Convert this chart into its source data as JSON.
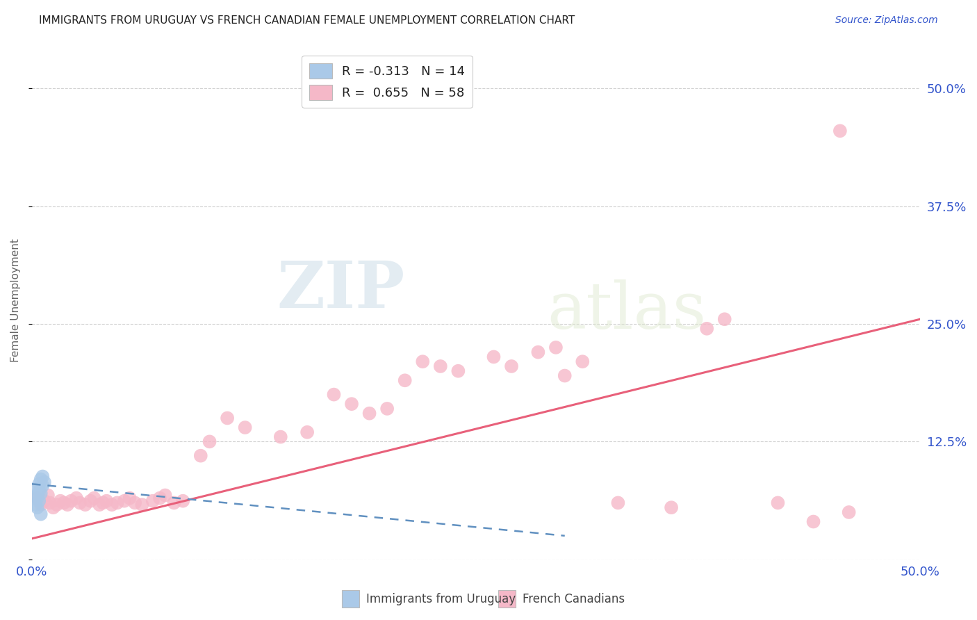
{
  "title": "IMMIGRANTS FROM URUGUAY VS FRENCH CANADIAN FEMALE UNEMPLOYMENT CORRELATION CHART",
  "source": "Source: ZipAtlas.com",
  "ylabel": "Female Unemployment",
  "xlim": [
    0.0,
    0.5
  ],
  "ylim": [
    0.0,
    0.55
  ],
  "ytick_positions": [
    0.0,
    0.125,
    0.25,
    0.375,
    0.5
  ],
  "ytick_labels": [
    "",
    "12.5%",
    "25.0%",
    "37.5%",
    "50.0%"
  ],
  "grid_color": "#d0d0d0",
  "background_color": "#ffffff",
  "watermark_zip": "ZIP",
  "watermark_atlas": "atlas",
  "blue_color": "#aac9e8",
  "pink_color": "#f5b8c8",
  "blue_line_color": "#6090c0",
  "pink_line_color": "#e8607a",
  "title_color": "#222222",
  "axis_label_color": "#666666",
  "tick_label_color": "#3355cc",
  "blue_scatter": [
    [
      0.002,
      0.075
    ],
    [
      0.003,
      0.068
    ],
    [
      0.004,
      0.08
    ],
    [
      0.005,
      0.085
    ],
    [
      0.006,
      0.088
    ],
    [
      0.004,
      0.072
    ],
    [
      0.003,
      0.065
    ],
    [
      0.005,
      0.07
    ],
    [
      0.007,
      0.082
    ],
    [
      0.006,
      0.078
    ],
    [
      0.002,
      0.058
    ],
    [
      0.004,
      0.062
    ],
    [
      0.003,
      0.055
    ],
    [
      0.005,
      0.048
    ]
  ],
  "pink_scatter": [
    [
      0.003,
      0.065
    ],
    [
      0.005,
      0.058
    ],
    [
      0.007,
      0.062
    ],
    [
      0.009,
      0.068
    ],
    [
      0.01,
      0.06
    ],
    [
      0.012,
      0.055
    ],
    [
      0.014,
      0.058
    ],
    [
      0.016,
      0.062
    ],
    [
      0.018,
      0.06
    ],
    [
      0.02,
      0.058
    ],
    [
      0.022,
      0.062
    ],
    [
      0.025,
      0.065
    ],
    [
      0.027,
      0.06
    ],
    [
      0.03,
      0.058
    ],
    [
      0.033,
      0.062
    ],
    [
      0.035,
      0.065
    ],
    [
      0.038,
      0.058
    ],
    [
      0.04,
      0.06
    ],
    [
      0.042,
      0.062
    ],
    [
      0.045,
      0.058
    ],
    [
      0.048,
      0.06
    ],
    [
      0.052,
      0.062
    ],
    [
      0.055,
      0.065
    ],
    [
      0.058,
      0.06
    ],
    [
      0.062,
      0.058
    ],
    [
      0.068,
      0.062
    ],
    [
      0.072,
      0.065
    ],
    [
      0.075,
      0.068
    ],
    [
      0.08,
      0.06
    ],
    [
      0.085,
      0.062
    ],
    [
      0.095,
      0.11
    ],
    [
      0.1,
      0.125
    ],
    [
      0.11,
      0.15
    ],
    [
      0.12,
      0.14
    ],
    [
      0.14,
      0.13
    ],
    [
      0.155,
      0.135
    ],
    [
      0.17,
      0.175
    ],
    [
      0.18,
      0.165
    ],
    [
      0.19,
      0.155
    ],
    [
      0.2,
      0.16
    ],
    [
      0.21,
      0.19
    ],
    [
      0.22,
      0.21
    ],
    [
      0.23,
      0.205
    ],
    [
      0.24,
      0.2
    ],
    [
      0.26,
      0.215
    ],
    [
      0.27,
      0.205
    ],
    [
      0.285,
      0.22
    ],
    [
      0.295,
      0.225
    ],
    [
      0.3,
      0.195
    ],
    [
      0.31,
      0.21
    ],
    [
      0.33,
      0.06
    ],
    [
      0.36,
      0.055
    ],
    [
      0.38,
      0.245
    ],
    [
      0.39,
      0.255
    ],
    [
      0.42,
      0.06
    ],
    [
      0.46,
      0.05
    ],
    [
      0.455,
      0.455
    ],
    [
      0.44,
      0.04
    ]
  ],
  "blue_line_x": [
    0.0,
    0.3
  ],
  "blue_line_y": [
    0.08,
    0.025
  ],
  "pink_line_x": [
    0.0,
    0.5
  ],
  "pink_line_y": [
    0.022,
    0.255
  ],
  "legend_items": [
    {
      "label": "R = -0.313   N = 14",
      "color": "#aac9e8"
    },
    {
      "label": "R =  0.655   N = 58",
      "color": "#f5b8c8"
    }
  ],
  "bottom_legend": [
    {
      "label": "Immigrants from Uruguay",
      "color": "#aac9e8"
    },
    {
      "label": "French Canadians",
      "color": "#f5b8c8"
    }
  ]
}
